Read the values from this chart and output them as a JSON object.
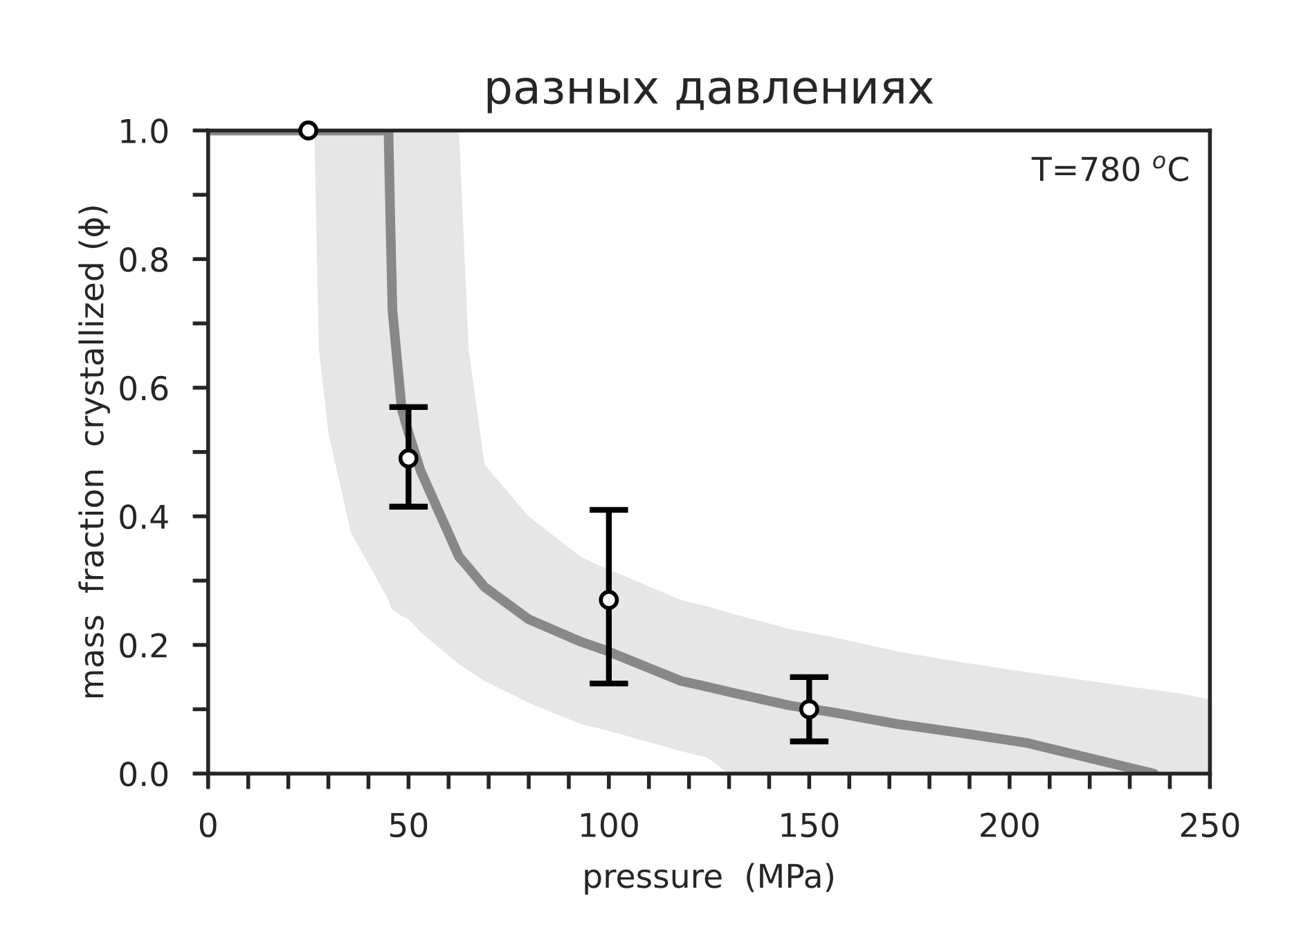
{
  "chart_data": {
    "type": "line",
    "title": "разных давлениях",
    "xlabel": "pressure  (MPa)",
    "ylabel": "mass  fraction  crystallized (ϕ)",
    "annotations": [
      "T=780 $^{o}$C"
    ],
    "xlim": [
      0,
      250
    ],
    "ylim": [
      0,
      1.0
    ],
    "xticks": [
      0,
      {
        "value": 10,
        "label": null
      },
      {
        "value": 20,
        "label": null
      },
      {
        "value": 30,
        "label": null
      },
      {
        "value": 40,
        "label": null
      },
      50,
      {
        "value": 60,
        "label": null
      },
      {
        "value": 70,
        "label": null
      },
      {
        "value": 80,
        "label": null
      },
      {
        "value": 90,
        "label": null
      },
      100,
      {
        "value": 110,
        "label": null
      },
      {
        "value": 120,
        "label": null
      },
      {
        "value": 130,
        "label": null
      },
      {
        "value": 140,
        "label": null
      },
      150,
      {
        "value": 160,
        "label": null
      },
      {
        "value": 170,
        "label": null
      },
      {
        "value": 180,
        "label": null
      },
      {
        "value": 190,
        "label": null
      },
      200,
      {
        "value": 210,
        "label": null
      },
      {
        "value": 220,
        "label": null
      },
      {
        "value": 230,
        "label": null
      },
      {
        "value": 240,
        "label": null
      },
      250
    ],
    "yticks": [
      {
        "value": 0,
        "label": "0.0"
      },
      {
        "value": 0.1,
        "label": null
      },
      {
        "value": 0.2,
        "label": "0.2"
      },
      {
        "value": 0.3,
        "label": null
      },
      {
        "value": 0.4,
        "label": "0.4"
      },
      {
        "value": 0.5,
        "label": null
      },
      {
        "value": 0.6,
        "label": "0.6"
      },
      {
        "value": 0.7,
        "label": null
      },
      {
        "value": 0.8,
        "label": "0.8"
      },
      {
        "value": 0.9,
        "label": null
      },
      {
        "value": 1.0,
        "label": "1.0"
      }
    ],
    "grid": false,
    "legend": false,
    "series": [
      {
        "color": "#888888",
        "marker": "none",
        "x": [
          0,
          26.5,
          27.6,
          30,
          35.6,
          45,
          45.5,
          46,
          48.3,
          50,
          53,
          62.6,
          65,
          69,
          80,
          93,
          99,
          118,
          124.5,
          130,
          145,
          156,
          172,
          188,
          204,
          236,
          242,
          250
        ],
        "values": [
          1,
          1,
          1,
          1,
          1,
          1,
          0.85,
          0.72,
          0.567,
          0.53,
          0.471,
          0.337,
          0.32,
          0.29,
          0.24,
          0.205,
          0.192,
          0.144,
          0.135,
          0.127,
          0.106,
          0.095,
          0.077,
          0.063,
          0.048,
          0,
          null,
          null
        ],
        "lower": [
          null,
          1,
          0.663,
          0.53,
          0.375,
          0.27,
          0.26,
          0.255,
          0.245,
          0.24,
          0.22,
          0.17,
          0.16,
          0.144,
          0.11,
          0.077,
          0.068,
          0.035,
          0.025,
          0,
          0,
          0,
          0,
          0,
          0,
          0,
          0,
          0
        ],
        "upper": [
          null,
          1,
          1,
          1,
          1,
          1,
          1,
          1,
          1,
          1,
          1,
          1,
          0.66,
          0.48,
          0.4,
          0.337,
          0.32,
          0.27,
          0.26,
          0.25,
          0.225,
          0.212,
          0.19,
          0.173,
          0.158,
          0.13,
          0.125,
          0.115
        ]
      },
      {
        "type": "scatter",
        "color": "#000000",
        "marker": "circle",
        "x": [
          25,
          50,
          100,
          150
        ],
        "values": [
          1.0,
          0.49,
          0.27,
          0.1
        ],
        "errors": [
          null,
          [
            0.415,
            0.57
          ],
          [
            0.14,
            0.41
          ],
          [
            0.05,
            0.15
          ]
        ]
      }
    ]
  }
}
